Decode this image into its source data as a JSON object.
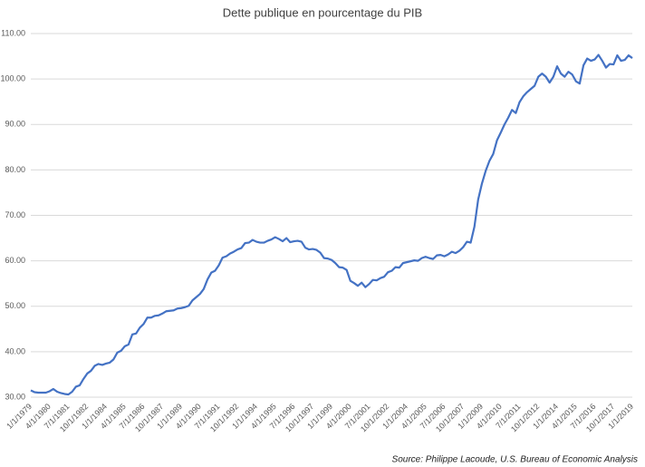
{
  "chart_data": {
    "type": "line",
    "title": "Dette publique en pourcentage du PIB",
    "source": "Source: Philippe Lacoude, U.S. Bureau of Economic Analysis",
    "color": "#4472c4",
    "grid": true,
    "ylim": [
      30,
      110
    ],
    "yticks": [
      {
        "value": 30,
        "label": "30.00"
      },
      {
        "value": 40,
        "label": "40.00"
      },
      {
        "value": 50,
        "label": "50.00"
      },
      {
        "value": 60,
        "label": "60.00"
      },
      {
        "value": 70,
        "label": "70.00"
      },
      {
        "value": 80,
        "label": "80.00"
      },
      {
        "value": 90,
        "label": "90.00"
      },
      {
        "value": 100,
        "label": "100.00"
      },
      {
        "value": 110,
        "label": "110.00"
      }
    ],
    "categories": [
      "1/1/1979",
      null,
      null,
      null,
      null,
      "4/1/1980",
      null,
      null,
      null,
      null,
      "7/1/1981",
      null,
      null,
      null,
      null,
      "10/1/1982",
      null,
      null,
      null,
      null,
      "1/1/1984",
      null,
      null,
      null,
      null,
      "4/1/1985",
      null,
      null,
      null,
      null,
      "7/1/1986",
      null,
      null,
      null,
      null,
      "10/1/1987",
      null,
      null,
      null,
      null,
      "1/1/1989",
      null,
      null,
      null,
      null,
      "4/1/1990",
      null,
      null,
      null,
      null,
      "7/1/1991",
      null,
      null,
      null,
      null,
      "10/1/1992",
      null,
      null,
      null,
      null,
      "1/1/1994",
      null,
      null,
      null,
      null,
      "4/1/1995",
      null,
      null,
      null,
      null,
      "7/1/1996",
      null,
      null,
      null,
      null,
      "10/1/1997",
      null,
      null,
      null,
      null,
      "1/1/1999",
      null,
      null,
      null,
      null,
      "4/1/2000",
      null,
      null,
      null,
      null,
      "7/1/2001",
      null,
      null,
      null,
      null,
      "10/1/2002",
      null,
      null,
      null,
      null,
      "1/1/2004",
      null,
      null,
      null,
      null,
      "4/1/2005",
      null,
      null,
      null,
      null,
      "7/1/2006",
      null,
      null,
      null,
      null,
      "10/1/2007",
      null,
      null,
      null,
      null,
      "1/1/2009",
      null,
      null,
      null,
      null,
      "4/1/2010",
      null,
      null,
      null,
      null,
      "7/1/2011",
      null,
      null,
      null,
      null,
      "10/1/2012",
      null,
      null,
      null,
      null,
      "1/1/2014",
      null,
      null,
      null,
      null,
      "4/1/2015",
      null,
      null,
      null,
      null,
      "7/1/2016",
      null,
      null,
      null,
      null,
      "10/1/2017",
      null,
      null,
      null,
      null,
      "1/1/2019"
    ],
    "values": [
      31.5,
      31.1,
      31.0,
      31.0,
      31.0,
      31.3,
      31.8,
      31.2,
      30.9,
      30.7,
      30.6,
      31.2,
      32.3,
      32.6,
      34.0,
      35.2,
      35.8,
      36.9,
      37.3,
      37.1,
      37.4,
      37.6,
      38.3,
      39.8,
      40.2,
      41.2,
      41.6,
      43.8,
      44.0,
      45.3,
      46.1,
      47.5,
      47.5,
      47.9,
      48.0,
      48.4,
      48.9,
      49.0,
      49.1,
      49.5,
      49.6,
      49.8,
      50.1,
      51.3,
      52.0,
      52.7,
      53.8,
      55.9,
      57.4,
      57.8,
      59.0,
      60.7,
      61.0,
      61.6,
      62.0,
      62.5,
      62.8,
      63.9,
      64.0,
      64.6,
      64.2,
      64.0,
      64.0,
      64.4,
      64.7,
      65.2,
      64.8,
      64.3,
      65.0,
      64.1,
      64.3,
      64.4,
      64.2,
      62.9,
      62.5,
      62.6,
      62.4,
      61.8,
      60.6,
      60.5,
      60.2,
      59.5,
      58.6,
      58.5,
      58.0,
      55.6,
      55.1,
      54.5,
      55.2,
      54.2,
      54.9,
      55.8,
      55.7,
      56.2,
      56.5,
      57.5,
      57.8,
      58.6,
      58.5,
      59.5,
      59.7,
      59.9,
      60.1,
      60.0,
      60.6,
      60.9,
      60.6,
      60.4,
      61.2,
      61.3,
      61.0,
      61.4,
      62.0,
      61.7,
      62.2,
      63.0,
      64.2,
      64.0,
      67.5,
      73.5,
      77.0,
      79.8,
      82.0,
      83.5,
      86.5,
      88.2,
      90.0,
      91.5,
      93.2,
      92.5,
      94.9,
      96.2,
      97.1,
      97.8,
      98.5,
      100.5,
      101.2,
      100.5,
      99.2,
      100.5,
      102.8,
      101.2,
      100.5,
      101.6,
      101.0,
      99.5,
      99.0,
      103.0,
      104.5,
      104.0,
      104.3,
      105.3,
      104.0,
      102.5,
      103.3,
      103.2,
      105.2,
      104.0,
      104.2,
      105.2,
      104.6
    ]
  }
}
